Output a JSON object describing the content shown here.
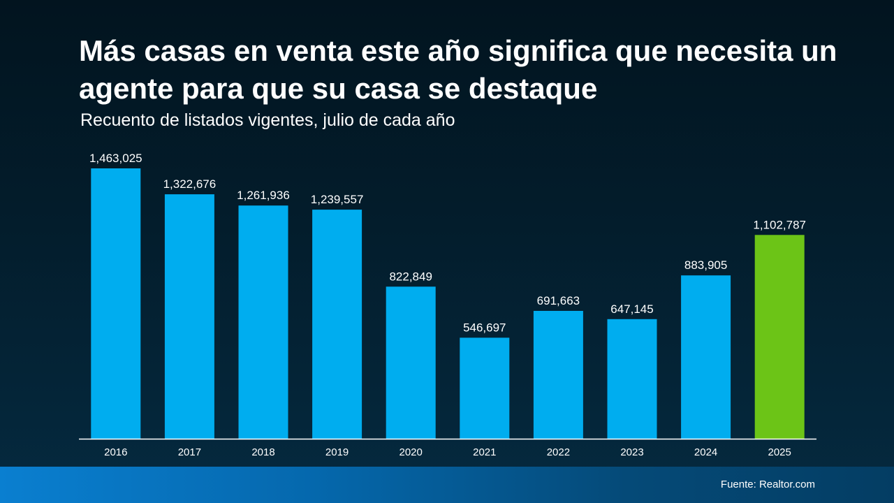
{
  "title": "Más casas en venta este año significa que necesita un agente para que su casa se destaque",
  "subtitle": "Recuento de listados vigentes, julio de cada año",
  "source": "Fuente: Realtor.com",
  "colors": {
    "bar": "#00adef",
    "highlight_bar": "#6cc417",
    "axis": "#ffffff"
  },
  "chart_data": {
    "type": "bar",
    "categories": [
      "2016",
      "2017",
      "2018",
      "2019",
      "2020",
      "2021",
      "2022",
      "2023",
      "2024",
      "2025"
    ],
    "values": [
      1463025,
      1322676,
      1261936,
      1239557,
      822849,
      546697,
      691663,
      647145,
      883905,
      1102787
    ],
    "value_labels": [
      "1,463,025",
      "1,322,676",
      "1,261,936",
      "1,239,557",
      "822,849",
      "546,697",
      "691,663",
      "647,145",
      "883,905",
      "1,102,787"
    ],
    "highlight_category": "2025",
    "ylim": [
      0,
      1463025
    ],
    "grid": false,
    "legend": "none"
  }
}
